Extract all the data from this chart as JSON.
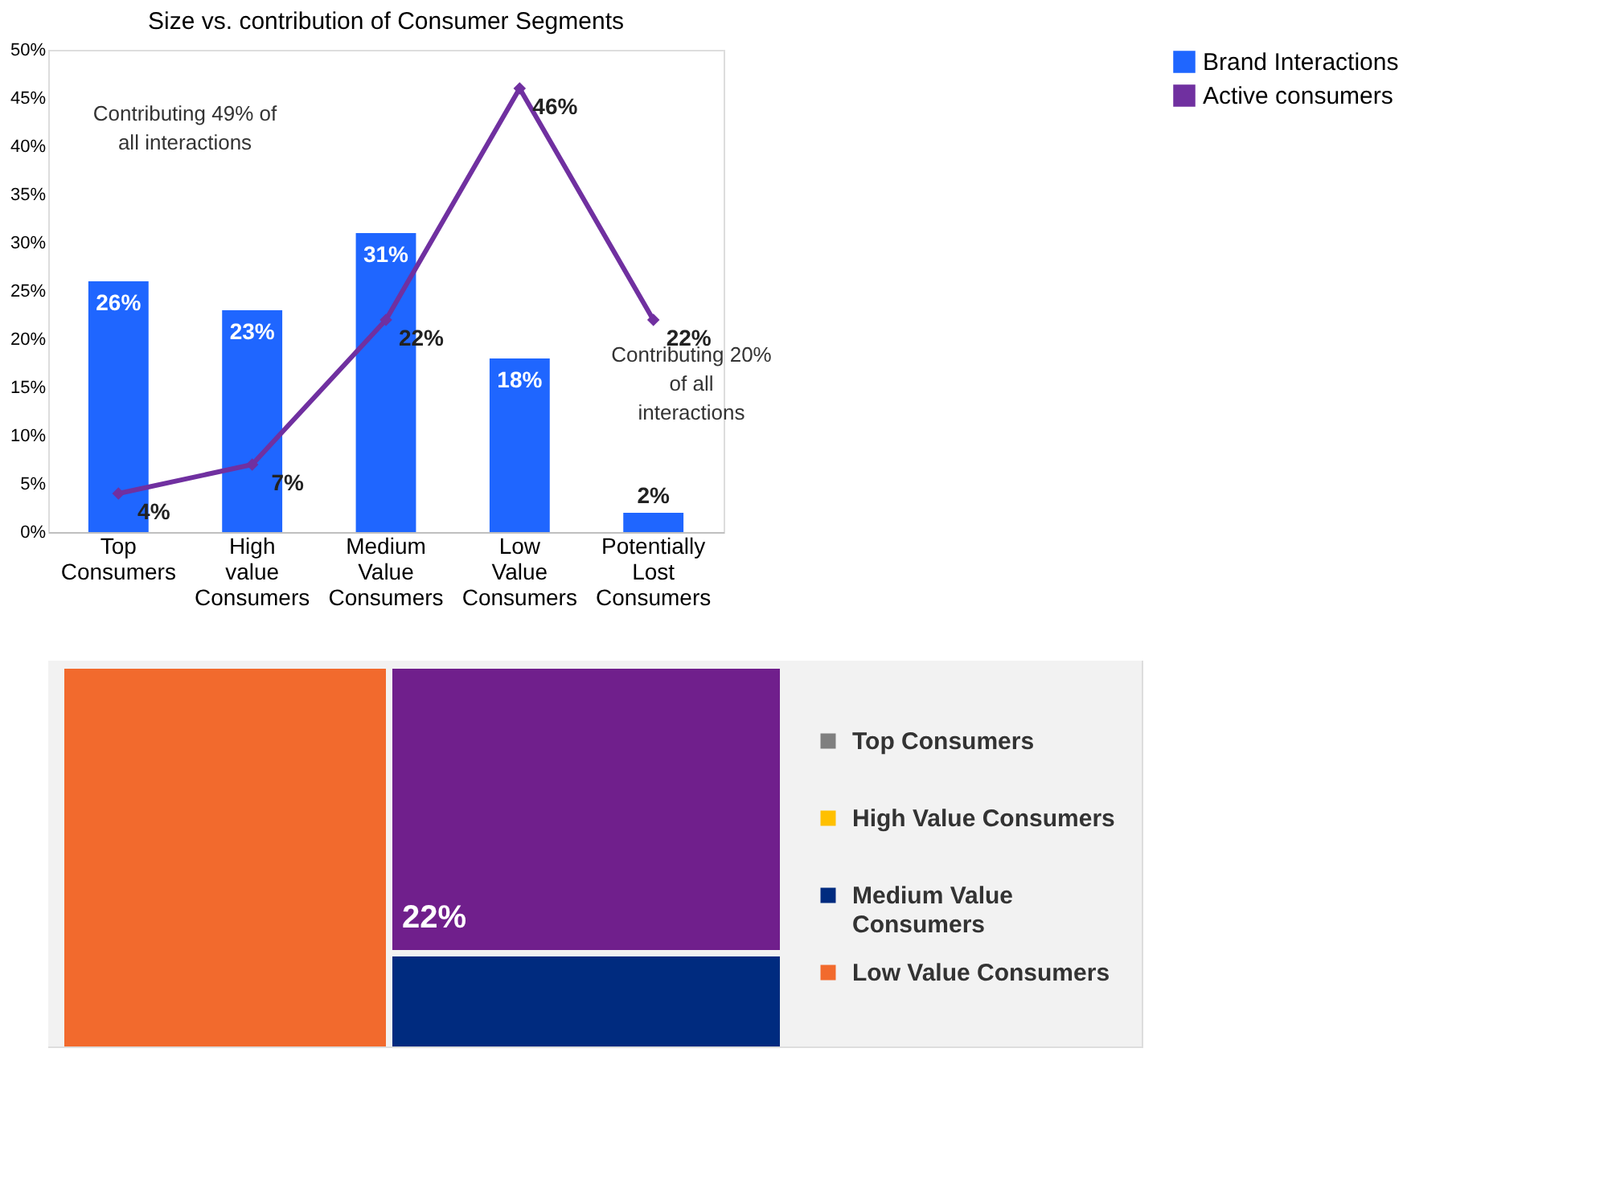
{
  "chart_data": [
    {
      "type": "bar",
      "title": "Size vs. contribution of Consumer Segments",
      "categories": [
        "Top Consumers",
        "High value Consumers",
        "Medium Value Consumers",
        "Low Value Consumers",
        "Potentially Lost Consumers"
      ],
      "series": [
        {
          "name": "Brand Interactions",
          "type": "bar",
          "color": "#1f66ff",
          "values": [
            26,
            23,
            31,
            18,
            2
          ],
          "value_labels": [
            "26%",
            "23%",
            "31%",
            "18%",
            "2%"
          ]
        },
        {
          "name": "Active consumers",
          "type": "line",
          "color": "#7030a0",
          "values": [
            4,
            7,
            22,
            46,
            22
          ],
          "value_labels": [
            "4%",
            "7%",
            "22%",
            "46%",
            "22%"
          ]
        }
      ],
      "ylim": [
        0,
        50
      ],
      "yticks": [
        {
          "value": 0,
          "label": "0%"
        },
        {
          "value": 5,
          "label": "5%"
        },
        {
          "value": 10,
          "label": "10%"
        },
        {
          "value": 15,
          "label": "15%"
        },
        {
          "value": 20,
          "label": "20%"
        },
        {
          "value": 25,
          "label": "25%"
        },
        {
          "value": 30,
          "label": "30%"
        },
        {
          "value": 35,
          "label": "35%"
        },
        {
          "value": 40,
          "label": "40%"
        },
        {
          "value": 45,
          "label": "45%"
        },
        {
          "value": 50,
          "label": "50%"
        }
      ],
      "marker": "diamond",
      "legend": "top right",
      "grid": false,
      "annotations": [
        "Contributing 49% of all interactions",
        "Contributing 20% of all interactions"
      ]
    },
    {
      "type": "other",
      "categories": [
        "Top Consumers",
        "High Value Consumers",
        "Medium Value Consumers",
        "Low Value Consumers"
      ],
      "colors": [
        "#7f7f7f",
        "#ffc000",
        "#002b7f",
        "#f26a2d"
      ],
      "annotations": [
        "22%"
      ]
    }
  ]
}
